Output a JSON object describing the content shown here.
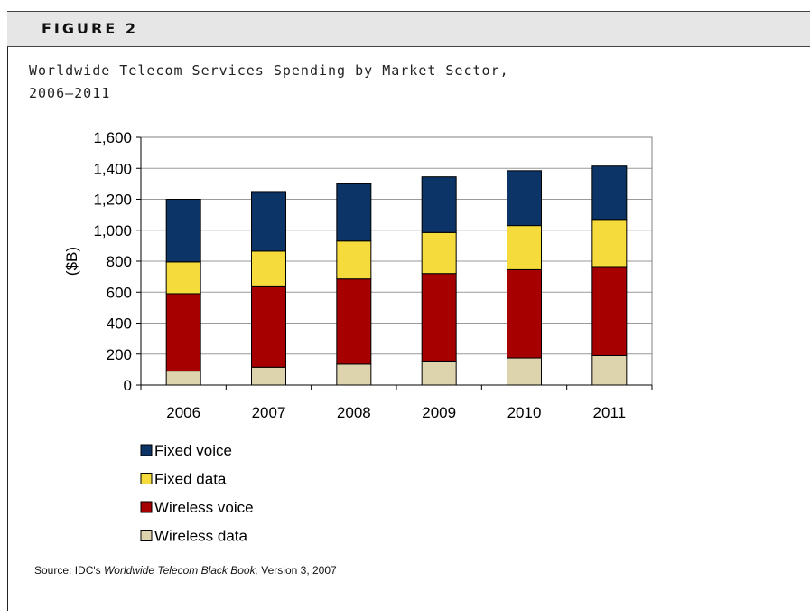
{
  "figure": {
    "label": "FIGURE 2",
    "title_line1": "Worldwide Telecom Services Spending by Market Sector,",
    "title_line2": "2006–2011"
  },
  "source": {
    "prefix": "Source: IDC's ",
    "publication": "Worldwide Telecom Black Book,",
    "suffix": " Version 3, 2007"
  },
  "chart_data": {
    "type": "bar",
    "stacked": true,
    "categories": [
      "2006",
      "2007",
      "2008",
      "2009",
      "2010",
      "2011"
    ],
    "series": [
      {
        "name": "Wireless data",
        "color": "#ddd3ad",
        "values": [
          90,
          115,
          135,
          155,
          175,
          190
        ]
      },
      {
        "name": "Wireless voice",
        "color": "#a60000",
        "values": [
          500,
          525,
          550,
          565,
          570,
          575
        ]
      },
      {
        "name": "Fixed data",
        "color": "#f5dc3c",
        "values": [
          205,
          225,
          245,
          265,
          285,
          305
        ]
      },
      {
        "name": "Fixed voice",
        "color": "#0d3466",
        "values": [
          405,
          385,
          370,
          360,
          355,
          345
        ]
      }
    ],
    "legend_order": [
      "Fixed voice",
      "Fixed data",
      "Wireless voice",
      "Wireless data"
    ],
    "ylabel": "($B)",
    "xlabel": "",
    "ylim": [
      0,
      1600
    ],
    "yticks": [
      0,
      200,
      400,
      600,
      800,
      1000,
      1200,
      1400,
      1600
    ],
    "ytick_labels": [
      "0",
      "200",
      "400",
      "600",
      "800",
      "1,000",
      "1,200",
      "1,400",
      "1,600"
    ],
    "grid": true,
    "legend_position": "bottom-left"
  }
}
